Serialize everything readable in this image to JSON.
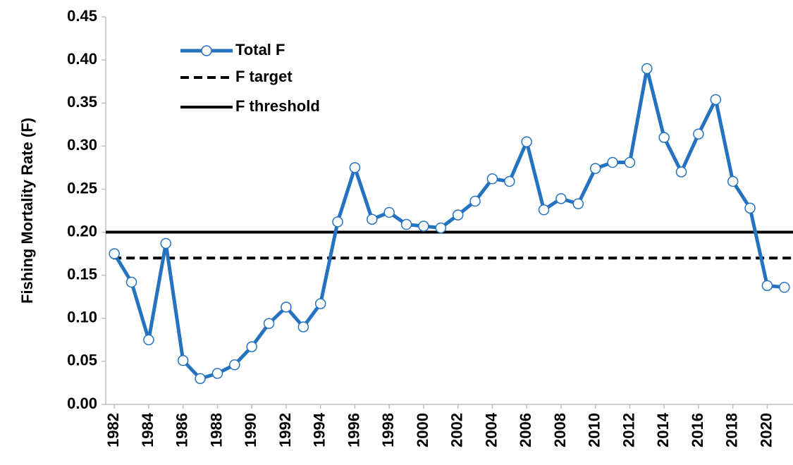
{
  "chart_data": {
    "type": "line",
    "ylabel": "Fishing Mortality Rate (F)",
    "x": [
      1982,
      1983,
      1984,
      1985,
      1986,
      1987,
      1988,
      1989,
      1990,
      1991,
      1992,
      1993,
      1994,
      1995,
      1996,
      1997,
      1998,
      1999,
      2000,
      2001,
      2002,
      2003,
      2004,
      2005,
      2006,
      2007,
      2008,
      2009,
      2010,
      2011,
      2012,
      2013,
      2014,
      2015,
      2016,
      2017,
      2018,
      2019,
      2020,
      2021
    ],
    "series": [
      {
        "name": "Total F",
        "color": "#2472c0",
        "marker": "circle",
        "values": [
          0.175,
          0.142,
          0.075,
          0.187,
          0.051,
          0.03,
          0.036,
          0.046,
          0.067,
          0.094,
          0.113,
          0.09,
          0.117,
          0.212,
          0.275,
          0.215,
          0.223,
          0.209,
          0.207,
          0.205,
          0.22,
          0.236,
          0.262,
          0.259,
          0.305,
          0.226,
          0.239,
          0.233,
          0.274,
          0.281,
          0.281,
          0.39,
          0.31,
          0.27,
          0.314,
          0.354,
          0.259,
          0.228,
          0.138,
          0.136
        ]
      }
    ],
    "reference_lines": [
      {
        "name": "F target",
        "value": 0.17,
        "color": "#000000",
        "dashed": true
      },
      {
        "name": "F threshold",
        "value": 0.2,
        "color": "#000000",
        "dashed": false
      }
    ],
    "xlim": [
      1981.5,
      2021.5
    ],
    "xticks": [
      1982,
      1984,
      1986,
      1988,
      1990,
      1992,
      1994,
      1996,
      1998,
      2000,
      2002,
      2004,
      2006,
      2008,
      2010,
      2012,
      2014,
      2016,
      2018,
      2020
    ],
    "ylim": [
      0,
      0.45
    ],
    "yticks": [
      {
        "value": 0,
        "label": "0.00"
      },
      {
        "value": 0.05,
        "label": "0.05"
      },
      {
        "value": 0.1,
        "label": "0.10"
      },
      {
        "value": 0.15,
        "label": "0.15"
      },
      {
        "value": 0.2,
        "label": "0.20"
      },
      {
        "value": 0.25,
        "label": "0.25"
      },
      {
        "value": 0.3,
        "label": "0.30"
      },
      {
        "value": 0.35,
        "label": "0.35"
      },
      {
        "value": 0.4,
        "label": "0.40"
      },
      {
        "value": 0.45,
        "label": "0.45"
      }
    ],
    "legend": "upper-left"
  }
}
